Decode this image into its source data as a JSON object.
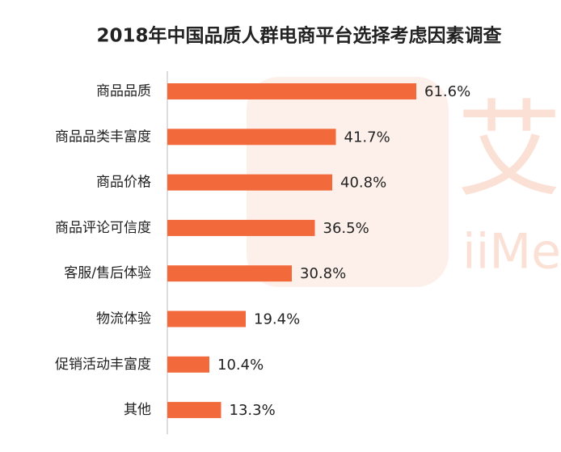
{
  "chart_data": {
    "type": "bar",
    "orientation": "horizontal",
    "title": "2018年中国品质人群电商平台选择考虑因素调查",
    "watermark": [
      "艾",
      "iiMe"
    ],
    "categories": [
      "商品品质",
      "商品品类丰富度",
      "商品价格",
      "商品评论可信度",
      "客服/售后体验",
      "物流体验",
      "促销活动丰富度",
      "其他"
    ],
    "values": [
      61.6,
      41.7,
      40.8,
      36.5,
      30.8,
      19.4,
      10.4,
      13.3
    ],
    "value_labels": [
      "61.6%",
      "41.7%",
      "40.8%",
      "36.5%",
      "30.8%",
      "19.4%",
      "10.4%",
      "13.3%"
    ],
    "color": "#f26a3b"
  }
}
